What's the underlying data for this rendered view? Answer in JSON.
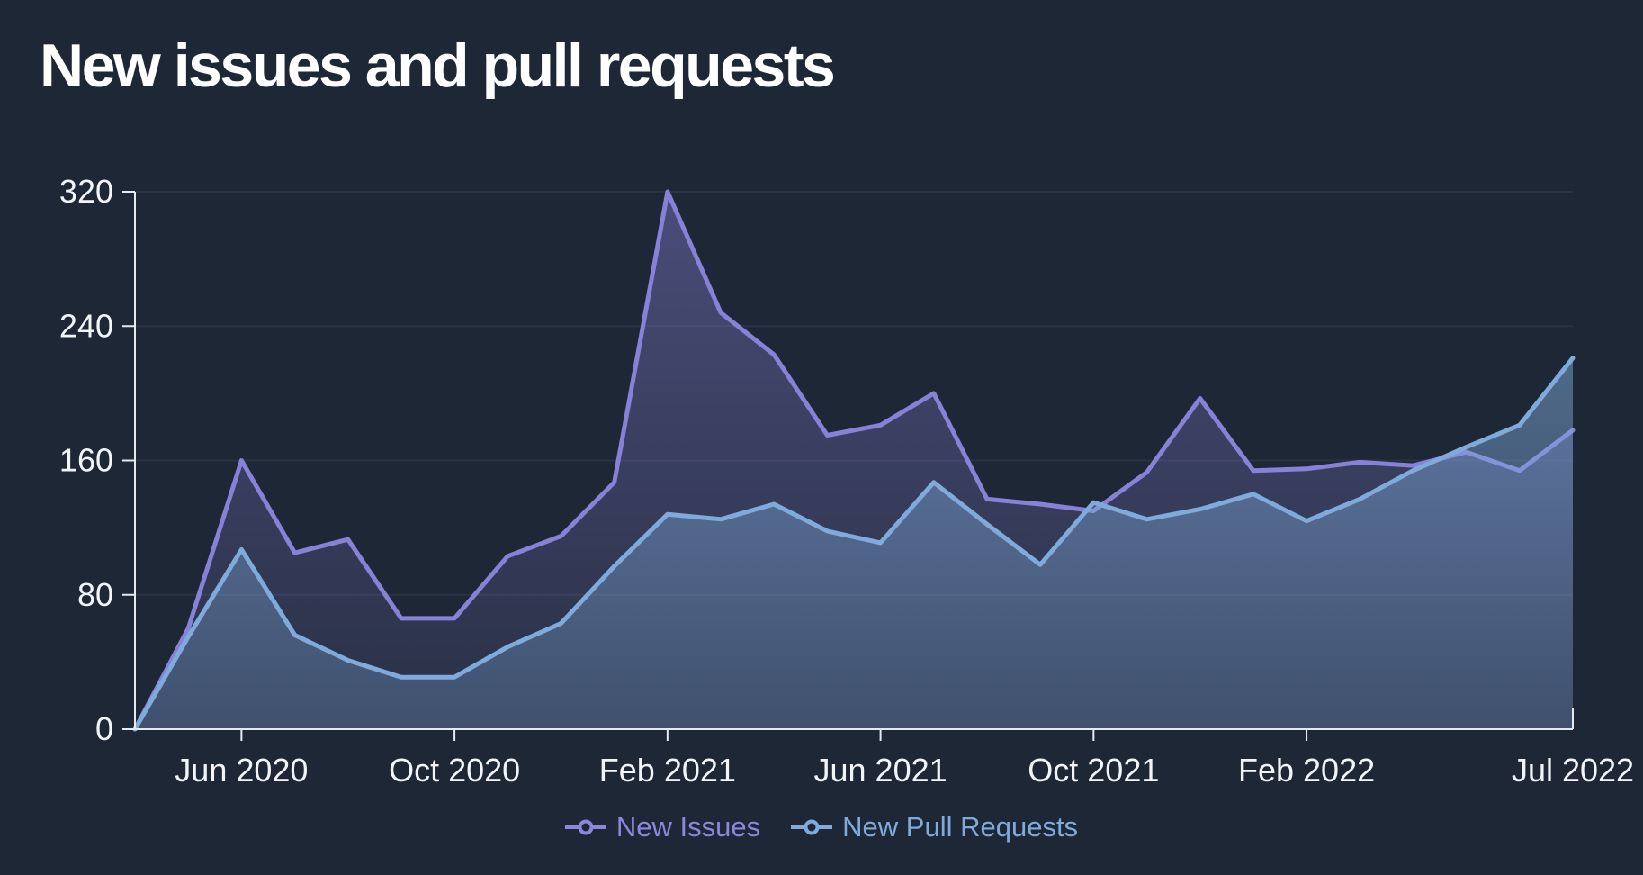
{
  "title": "New issues and pull requests",
  "colors": {
    "background": "#1E2735",
    "gridline": "#2A3343",
    "axis": "#E6EAF0",
    "issues_purple": "#8781D7",
    "pull_requests_blue": "#7FABDC"
  },
  "legend": {
    "items": [
      {
        "label": "New Issues",
        "color": "#8C87DC"
      },
      {
        "label": "New Pull Requests",
        "color": "#7FABDC"
      }
    ]
  },
  "chart_data": {
    "type": "area",
    "title": "New issues and pull requests",
    "x": [
      "Apr 2020",
      "May 2020",
      "Jun 2020",
      "Jul 2020",
      "Aug 2020",
      "Sep 2020",
      "Oct 2020",
      "Nov 2020",
      "Dec 2020",
      "Jan 2021",
      "Feb 2021",
      "Mar 2021",
      "Apr 2021",
      "May 2021",
      "Jun 2021",
      "Jul 2021",
      "Aug 2021",
      "Sep 2021",
      "Oct 2021",
      "Nov 2021",
      "Dec 2021",
      "Jan 2022",
      "Feb 2022",
      "Mar 2022",
      "Apr 2022",
      "May 2022",
      "Jun 2022",
      "Jul 2022"
    ],
    "series": [
      {
        "name": "New Issues",
        "color": "#8781D7",
        "values": [
          0,
          60,
          160,
          105,
          113,
          66,
          66,
          103,
          115,
          147,
          320,
          248,
          223,
          175,
          181,
          200,
          137,
          134,
          130,
          153,
          197,
          154,
          155,
          159,
          157,
          165,
          154,
          178
        ]
      },
      {
        "name": "New Pull Requests",
        "color": "#7FABDC",
        "values": [
          0,
          55,
          107,
          56,
          41,
          31,
          31,
          49,
          63,
          97,
          128,
          125,
          134,
          118,
          111,
          147,
          122,
          98,
          135,
          125,
          131,
          140,
          124,
          137,
          154,
          168,
          181,
          221
        ]
      }
    ],
    "ylim": [
      0,
      320
    ],
    "y_ticks": [
      0,
      80,
      160,
      240,
      320
    ],
    "x_tick_labels": [
      "Jun 2020",
      "Oct 2020",
      "Feb 2021",
      "Jun 2021",
      "Oct 2021",
      "Feb 2022",
      "Jul 2022"
    ],
    "x_tick_indices": [
      2,
      6,
      10,
      14,
      18,
      22,
      27
    ],
    "grid": true,
    "legend_position": "bottom"
  }
}
